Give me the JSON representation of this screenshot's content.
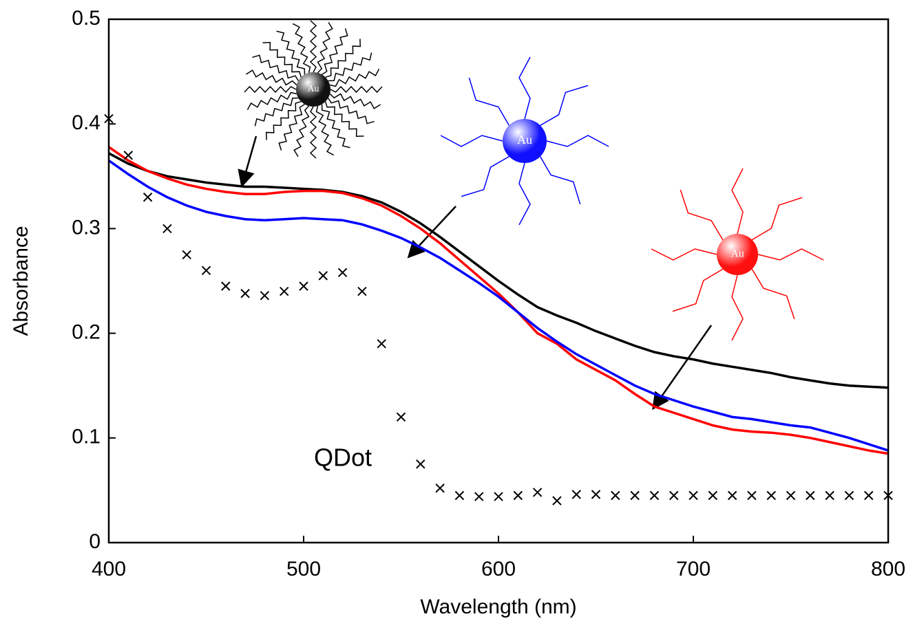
{
  "chart_data": {
    "type": "line",
    "x_label": "Wavelength (nm)",
    "y_label": "Absorbance",
    "xlim": [
      400,
      800
    ],
    "xticks": [
      400,
      500,
      600,
      700,
      800
    ],
    "ylim": [
      0,
      0.5
    ],
    "yticks": [
      0,
      0.1,
      0.2,
      0.3,
      0.4,
      0.5
    ],
    "x": [
      400,
      410,
      420,
      430,
      440,
      450,
      460,
      470,
      480,
      490,
      500,
      510,
      520,
      530,
      540,
      550,
      560,
      570,
      580,
      590,
      600,
      610,
      620,
      630,
      640,
      650,
      660,
      670,
      680,
      690,
      700,
      710,
      720,
      730,
      740,
      750,
      760,
      770,
      780,
      790,
      800
    ],
    "series": [
      {
        "color": "#000000",
        "marker": "none",
        "values": [
          0.372,
          0.362,
          0.355,
          0.35,
          0.347,
          0.344,
          0.342,
          0.34,
          0.34,
          0.339,
          0.338,
          0.337,
          0.335,
          0.331,
          0.325,
          0.316,
          0.305,
          0.292,
          0.278,
          0.264,
          0.25,
          0.237,
          0.225,
          0.217,
          0.21,
          0.202,
          0.195,
          0.188,
          0.182,
          0.178,
          0.175,
          0.171,
          0.168,
          0.165,
          0.162,
          0.158,
          0.155,
          0.152,
          0.15,
          0.149,
          0.148
        ]
      },
      {
        "color": "#ff0000",
        "marker": "none",
        "values": [
          0.378,
          0.365,
          0.355,
          0.348,
          0.342,
          0.338,
          0.335,
          0.333,
          0.333,
          0.335,
          0.336,
          0.336,
          0.334,
          0.329,
          0.322,
          0.312,
          0.3,
          0.286,
          0.27,
          0.254,
          0.238,
          0.22,
          0.2,
          0.19,
          0.175,
          0.165,
          0.155,
          0.142,
          0.13,
          0.124,
          0.118,
          0.112,
          0.108,
          0.106,
          0.105,
          0.103,
          0.1,
          0.096,
          0.092,
          0.088,
          0.085
        ]
      },
      {
        "color": "#0000ff",
        "marker": "none",
        "values": [
          0.365,
          0.352,
          0.34,
          0.33,
          0.322,
          0.316,
          0.312,
          0.309,
          0.308,
          0.309,
          0.31,
          0.309,
          0.308,
          0.304,
          0.298,
          0.291,
          0.282,
          0.272,
          0.26,
          0.248,
          0.235,
          0.22,
          0.205,
          0.192,
          0.18,
          0.17,
          0.16,
          0.15,
          0.142,
          0.136,
          0.13,
          0.125,
          0.12,
          0.118,
          0.115,
          0.112,
          0.11,
          0.105,
          0.1,
          0.094,
          0.088
        ]
      },
      {
        "color": "#000000",
        "marker": "x",
        "values": [
          0.405,
          0.37,
          0.33,
          0.3,
          0.275,
          0.26,
          0.245,
          0.238,
          0.236,
          0.24,
          0.245,
          0.255,
          0.258,
          0.24,
          0.19,
          0.12,
          0.075,
          0.052,
          0.045,
          0.044,
          0.044,
          0.045,
          0.048,
          0.04,
          0.046,
          0.046,
          0.045,
          0.045,
          0.045,
          0.045,
          0.045,
          0.045,
          0.045,
          0.045,
          0.045,
          0.045,
          0.045,
          0.045,
          0.045,
          0.045,
          0.045
        ]
      }
    ],
    "annotations": [
      {
        "text": "QDot"
      },
      {
        "text": "Au"
      },
      {
        "text": "Au"
      },
      {
        "text": "Au"
      }
    ]
  }
}
